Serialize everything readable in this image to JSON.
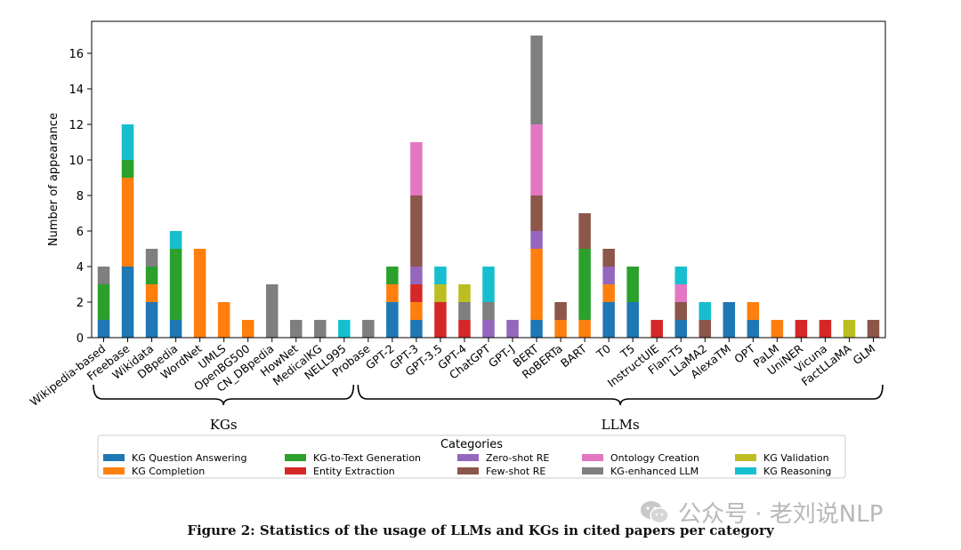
{
  "chart_data": {
    "type": "bar",
    "stacked": true,
    "ylabel": "Number of appearance",
    "xlabel": "",
    "ylim": [
      0,
      17.8
    ],
    "yticks": [
      0,
      2,
      4,
      6,
      8,
      10,
      12,
      14,
      16
    ],
    "categories": [
      "Wikipedia-based",
      "Freebase",
      "Wikidata",
      "DBpedia",
      "WordNet",
      "UMLS",
      "OpenBG500",
      "CN_DBpedia",
      "HowNet",
      "MedicalKG",
      "NELL995",
      "Probase",
      "GPT-2",
      "GPT-3",
      "GPT-3.5",
      "GPT-4",
      "ChatGPT",
      "GPT-J",
      "BERT",
      "RoBERTa",
      "BART",
      "T0",
      "T5",
      "InstructUIE",
      "Flan-T5",
      "LLaMA2",
      "AlexaTM",
      "OPT",
      "PaLM",
      "UniNER",
      "Vicuna",
      "FactLLaMA",
      "GLM"
    ],
    "series": [
      {
        "name": "KG Question Answering",
        "color": "#1f77b4",
        "values": [
          1,
          4,
          2,
          1,
          0,
          0,
          0,
          0,
          0,
          0,
          0,
          0,
          2,
          1,
          0,
          0,
          0,
          0,
          1,
          0,
          0,
          2,
          2,
          0,
          1,
          0,
          2,
          1,
          0,
          0,
          0,
          0,
          0
        ]
      },
      {
        "name": "KG Completion",
        "color": "#ff7f0e",
        "values": [
          0,
          5,
          1,
          0,
          5,
          2,
          1,
          0,
          0,
          0,
          0,
          0,
          1,
          1,
          0,
          0,
          0,
          0,
          4,
          1,
          1,
          1,
          0,
          0,
          0,
          0,
          0,
          1,
          1,
          0,
          0,
          0,
          0
        ]
      },
      {
        "name": "KG-to-Text Generation",
        "color": "#2ca02c",
        "values": [
          2,
          1,
          1,
          4,
          0,
          0,
          0,
          0,
          0,
          0,
          0,
          0,
          1,
          0,
          0,
          0,
          0,
          0,
          0,
          0,
          4,
          0,
          2,
          0,
          0,
          0,
          0,
          0,
          0,
          0,
          0,
          0,
          0
        ]
      },
      {
        "name": "Entity Extraction",
        "color": "#d62728",
        "values": [
          0,
          0,
          0,
          0,
          0,
          0,
          0,
          0,
          0,
          0,
          0,
          0,
          0,
          1,
          2,
          1,
          0,
          0,
          0,
          0,
          0,
          0,
          0,
          1,
          0,
          0,
          0,
          0,
          0,
          1,
          1,
          0,
          0
        ]
      },
      {
        "name": "Zero-shot RE",
        "color": "#9467bd",
        "values": [
          0,
          0,
          0,
          0,
          0,
          0,
          0,
          0,
          0,
          0,
          0,
          0,
          0,
          1,
          0,
          0,
          1,
          1,
          1,
          0,
          0,
          1,
          0,
          0,
          0,
          0,
          0,
          0,
          0,
          0,
          0,
          0,
          0
        ]
      },
      {
        "name": "Few-shot RE",
        "color": "#8c564b",
        "values": [
          0,
          0,
          0,
          0,
          0,
          0,
          0,
          0,
          0,
          0,
          0,
          0,
          0,
          4,
          0,
          0,
          0,
          0,
          2,
          1,
          2,
          1,
          0,
          0,
          1,
          1,
          0,
          0,
          0,
          0,
          0,
          0,
          1
        ]
      },
      {
        "name": "Ontology Creation",
        "color": "#e377c2",
        "values": [
          0,
          0,
          0,
          0,
          0,
          0,
          0,
          0,
          0,
          0,
          0,
          0,
          0,
          3,
          0,
          0,
          0,
          0,
          4,
          0,
          0,
          0,
          0,
          0,
          1,
          0,
          0,
          0,
          0,
          0,
          0,
          0,
          0
        ]
      },
      {
        "name": "KG-enhanced LLM",
        "color": "#7f7f7f",
        "values": [
          1,
          0,
          1,
          0,
          0,
          0,
          0,
          3,
          1,
          1,
          0,
          1,
          0,
          0,
          0,
          1,
          1,
          0,
          5,
          0,
          0,
          0,
          0,
          0,
          0,
          0,
          0,
          0,
          0,
          0,
          0,
          0,
          0
        ]
      },
      {
        "name": "KG Validation",
        "color": "#bcbd22",
        "values": [
          0,
          0,
          0,
          0,
          0,
          0,
          0,
          0,
          0,
          0,
          0,
          0,
          0,
          0,
          1,
          1,
          0,
          0,
          0,
          0,
          0,
          0,
          0,
          0,
          0,
          0,
          0,
          0,
          0,
          0,
          0,
          1,
          0
        ]
      },
      {
        "name": "KG Reasoning",
        "color": "#17becf",
        "values": [
          0,
          2,
          0,
          1,
          0,
          0,
          0,
          0,
          0,
          0,
          1,
          0,
          0,
          0,
          1,
          0,
          2,
          0,
          0,
          0,
          0,
          0,
          0,
          0,
          1,
          1,
          0,
          0,
          0,
          0,
          0,
          0,
          0
        ]
      }
    ],
    "groups": [
      {
        "label": "KGs",
        "from": "Wikipedia-based",
        "to": "NELL995"
      },
      {
        "label": "LLMs",
        "from": "Probase",
        "to": "GLM"
      }
    ],
    "legend_title": "Categories",
    "legend_position": "bottom-center"
  },
  "watermark": "公众号 · 老刘说NLP",
  "caption": "Figure 2: Statistics of the usage of LLMs and KGs in cited papers per category"
}
